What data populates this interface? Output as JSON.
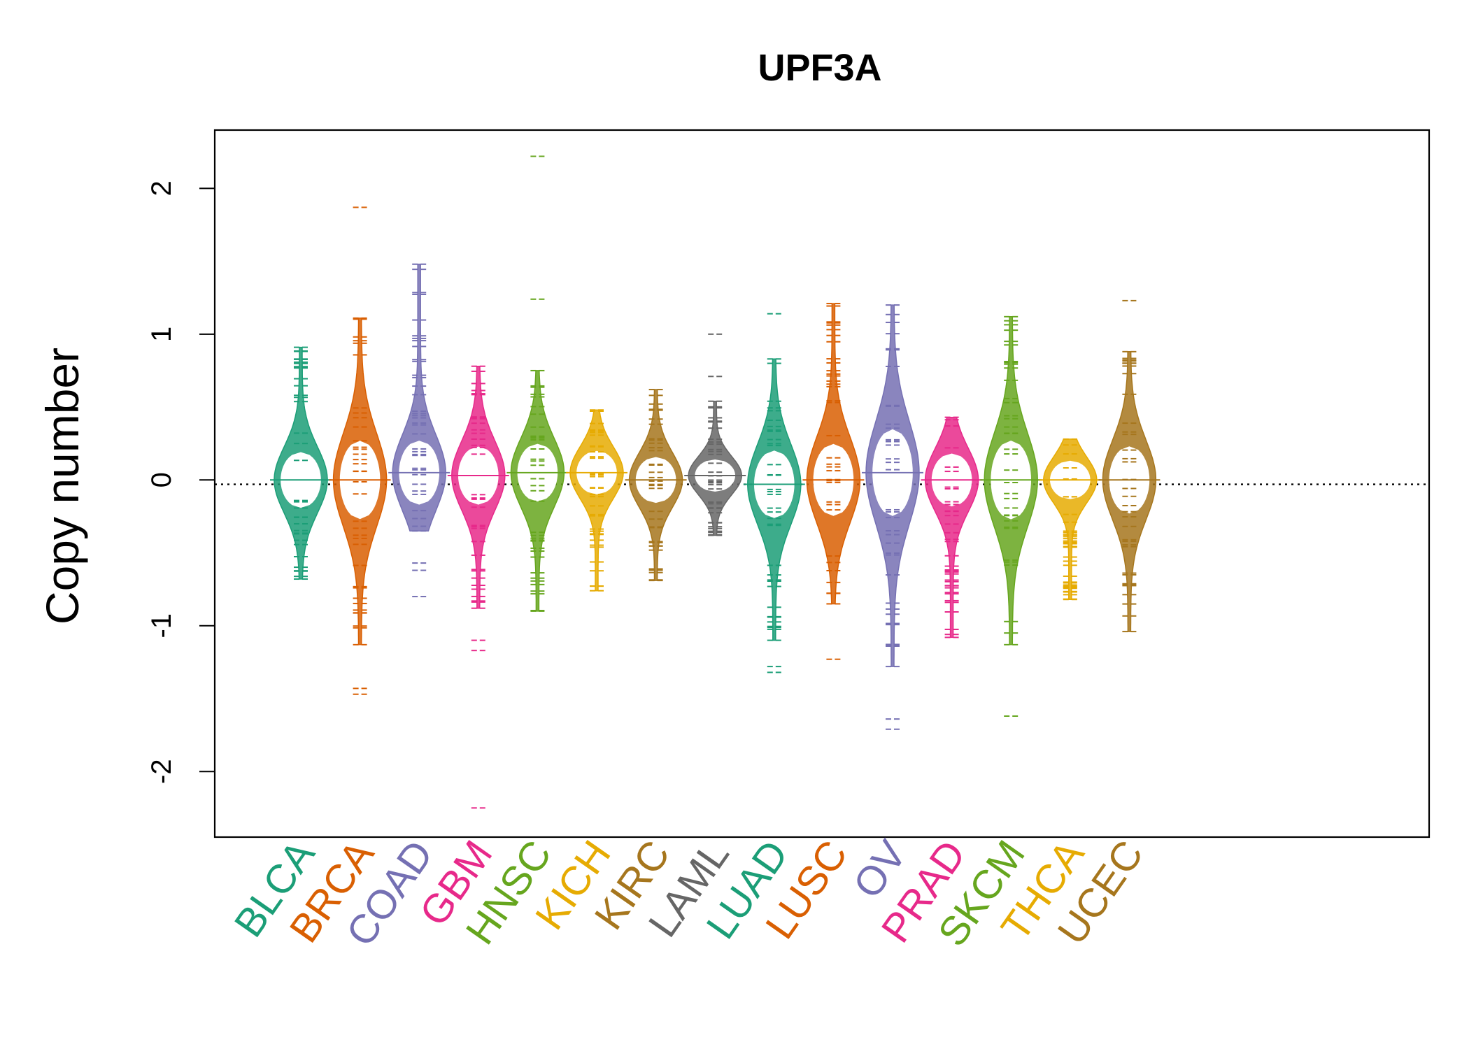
{
  "chart_data": {
    "type": "beanplot",
    "title": "UPF3A",
    "xlabel": "",
    "ylabel": "Copy number",
    "ylim": [
      -2.45,
      2.4
    ],
    "yticks": [
      -2,
      -1,
      0,
      1,
      2
    ],
    "reference_line": -0.03,
    "categories": [
      "BLCA",
      "BRCA",
      "COAD",
      "GBM",
      "HNSC",
      "KICH",
      "KIRC",
      "LAML",
      "LUAD",
      "LUSC",
      "OV",
      "PRAD",
      "SKCM",
      "THCA",
      "UCEC"
    ],
    "colors": [
      "#1b9e77",
      "#d95f02",
      "#7570b3",
      "#e7298a",
      "#66a61e",
      "#e6ab02",
      "#a6761d",
      "#666666",
      "#1b9e77",
      "#d95f02",
      "#7570b3",
      "#e7298a",
      "#66a61e",
      "#e6ab02",
      "#a6761d"
    ],
    "series": [
      {
        "name": "BLCA",
        "min": -0.68,
        "max": 0.91,
        "mean": 0.0,
        "outliers": []
      },
      {
        "name": "BRCA",
        "min": -1.13,
        "max": 1.11,
        "mean": 0.0,
        "outliers": [
          -1.47,
          -1.43,
          1.87
        ]
      },
      {
        "name": "COAD",
        "min": -0.35,
        "max": 1.48,
        "mean": 0.05,
        "outliers": [
          -0.8,
          -0.62,
          -0.57
        ]
      },
      {
        "name": "GBM",
        "min": -0.88,
        "max": 0.78,
        "mean": 0.03,
        "outliers": [
          -2.25,
          -1.17,
          -1.1
        ]
      },
      {
        "name": "HNSC",
        "min": -0.9,
        "max": 0.75,
        "mean": 0.05,
        "outliers": [
          1.24,
          2.22
        ]
      },
      {
        "name": "KICH",
        "min": -0.76,
        "max": 0.48,
        "mean": 0.05,
        "outliers": []
      },
      {
        "name": "KIRC",
        "min": -0.69,
        "max": 0.62,
        "mean": 0.0,
        "outliers": []
      },
      {
        "name": "LAML",
        "min": -0.38,
        "max": 0.54,
        "mean": 0.03,
        "outliers": [
          0.71,
          1.0
        ]
      },
      {
        "name": "LUAD",
        "min": -1.1,
        "max": 0.83,
        "mean": -0.03,
        "outliers": [
          -1.32,
          -1.28,
          1.14
        ]
      },
      {
        "name": "LUSC",
        "min": -0.85,
        "max": 1.21,
        "mean": 0.0,
        "outliers": [
          -1.23
        ]
      },
      {
        "name": "OV",
        "min": -1.28,
        "max": 1.2,
        "mean": 0.05,
        "outliers": [
          -1.71,
          -1.64
        ]
      },
      {
        "name": "PRAD",
        "min": -1.08,
        "max": 0.43,
        "mean": 0.0,
        "outliers": []
      },
      {
        "name": "SKCM",
        "min": -1.13,
        "max": 1.12,
        "mean": 0.0,
        "outliers": [
          -1.62
        ]
      },
      {
        "name": "THCA",
        "min": -0.82,
        "max": 0.28,
        "mean": 0.0,
        "outliers": []
      },
      {
        "name": "UCEC",
        "min": -1.04,
        "max": 0.88,
        "mean": 0.0,
        "outliers": [
          1.23
        ]
      }
    ]
  }
}
